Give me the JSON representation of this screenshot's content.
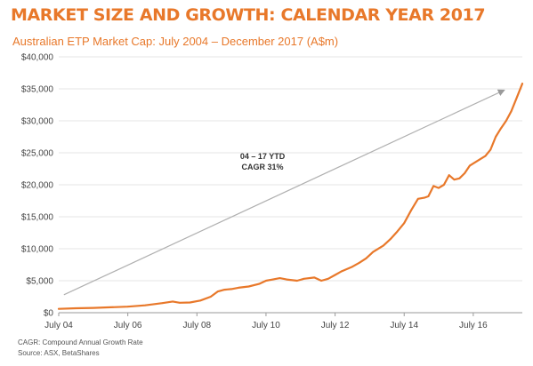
{
  "title": "MARKET SIZE AND GROWTH: CALENDAR YEAR 2017",
  "chart_data": {
    "type": "line",
    "subtitle": "Australian ETP Market Cap: July 2004 – December 2017 (A$m)",
    "ylim": [
      0,
      40000
    ],
    "yticks": [
      {
        "value": 0,
        "label": "$0"
      },
      {
        "value": 5000,
        "label": "$5,000"
      },
      {
        "value": 10000,
        "label": "$10,000"
      },
      {
        "value": 15000,
        "label": "$15,000"
      },
      {
        "value": 20000,
        "label": "$20,000"
      },
      {
        "value": 25000,
        "label": "$25,000"
      },
      {
        "value": 30000,
        "label": "$30,000"
      },
      {
        "value": 35000,
        "label": "$35,000"
      },
      {
        "value": 40000,
        "label": "$40,000"
      }
    ],
    "xlim": [
      2004.5,
      2017.92
    ],
    "xticks": [
      {
        "value": 2004.5,
        "label": "July 04"
      },
      {
        "value": 2006.5,
        "label": "July 06"
      },
      {
        "value": 2008.5,
        "label": "July 08"
      },
      {
        "value": 2010.5,
        "label": "July 10"
      },
      {
        "value": 2012.5,
        "label": "July 12"
      },
      {
        "value": 2014.5,
        "label": "July 14"
      },
      {
        "value": 2016.5,
        "label": "July 16"
      }
    ],
    "grid": true,
    "line_color": "#e8782a",
    "series": [
      {
        "x": [
          2004.5,
          2005.0,
          2005.5,
          2006.0,
          2006.5,
          2007.0,
          2007.5,
          2007.8,
          2008.0,
          2008.3,
          2008.6,
          2008.9,
          2009.1,
          2009.3,
          2009.5,
          2009.7,
          2010.0,
          2010.3,
          2010.5,
          2010.7,
          2010.9,
          2011.1,
          2011.4,
          2011.6,
          2011.9,
          2012.1,
          2012.3,
          2012.5,
          2012.7,
          2013.0,
          2013.2,
          2013.4,
          2013.6,
          2013.9,
          2014.1,
          2014.3,
          2014.5,
          2014.7,
          2014.9,
          2015.1,
          2015.2,
          2015.35,
          2015.5,
          2015.65,
          2015.8,
          2015.95,
          2016.1,
          2016.25,
          2016.4,
          2016.55,
          2016.7,
          2016.85,
          2017.0,
          2017.15,
          2017.3,
          2017.45,
          2017.6,
          2017.75,
          2017.92
        ],
        "y": [
          600,
          700,
          750,
          850,
          950,
          1150,
          1500,
          1750,
          1550,
          1600,
          1900,
          2500,
          3300,
          3600,
          3700,
          3900,
          4100,
          4500,
          5000,
          5200,
          5400,
          5200,
          5000,
          5300,
          5500,
          5000,
          5300,
          5900,
          6500,
          7200,
          7800,
          8500,
          9500,
          10500,
          11500,
          12700,
          14000,
          16000,
          17800,
          18000,
          18200,
          19800,
          19500,
          20000,
          21500,
          20800,
          21000,
          21800,
          23000,
          23500,
          24000,
          24500,
          25500,
          27500,
          28800,
          30000,
          31500,
          33500,
          35800
        ]
      }
    ],
    "arrow": {
      "from": {
        "x": 2004.65,
        "y": 2800
      },
      "to": {
        "x": 2017.4,
        "y": 34800
      }
    },
    "annotation": {
      "lines": [
        "04 – 17 YTD",
        "CAGR 31%"
      ],
      "x": 2010.4,
      "y": 24000
    }
  },
  "footnotes": [
    "CAGR: Compound Annual Growth Rate",
    "Source: ASX, BetaShares"
  ]
}
